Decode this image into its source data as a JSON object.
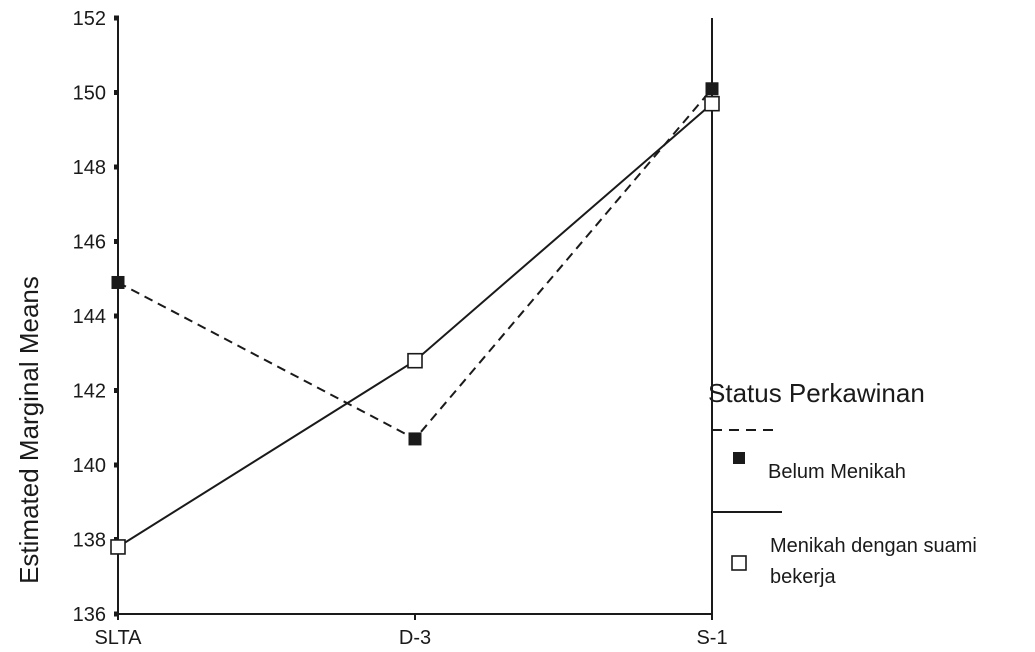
{
  "chart_data": {
    "type": "line",
    "xlabel": "",
    "ylabel": "Estimated Marginal Means",
    "categories": [
      "SLTA",
      "D-3",
      "S-1"
    ],
    "ylim": [
      136,
      152
    ],
    "yticks": [
      136,
      138,
      140,
      142,
      144,
      146,
      148,
      150,
      152
    ],
    "grid": false,
    "legend_title": "Status Perkawinan",
    "legend_position": "right",
    "series": [
      {
        "name": "Belum Menikah",
        "values": [
          144.9,
          140.7,
          150.1
        ],
        "line_style": "dashed",
        "marker": "filled-square",
        "color": "#1a1a1a"
      },
      {
        "name": "Menikah dengan suami bekerja",
        "legend_lines": [
          "Menikah dengan suami",
          "bekerja"
        ],
        "values": [
          137.8,
          142.8,
          149.7
        ],
        "line_style": "solid",
        "marker": "open-square",
        "color": "#1a1a1a"
      }
    ]
  }
}
